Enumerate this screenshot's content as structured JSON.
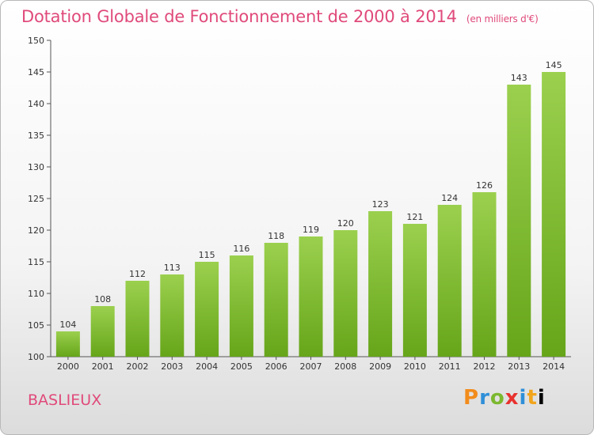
{
  "header": {
    "title": "Dotation Globale de Fonctionnement de 2000 à 2014",
    "subtitle": "(en milliers d'€)"
  },
  "footer": {
    "commune": "BASLIEUX",
    "logo": "Proxiti"
  },
  "colors": {
    "bar_top": "#9bd04e",
    "bar_bottom": "#66a51a",
    "title": "#e04a7a"
  },
  "chart_data": {
    "type": "bar",
    "title": "Dotation Globale de Fonctionnement de 2000 à 2014",
    "subtitle": "(en milliers d'€)",
    "xlabel": "",
    "ylabel": "",
    "categories": [
      "2000",
      "2001",
      "2002",
      "2003",
      "2004",
      "2005",
      "2006",
      "2007",
      "2008",
      "2009",
      "2010",
      "2011",
      "2012",
      "2013",
      "2014"
    ],
    "values": [
      104,
      108,
      112,
      113,
      115,
      116,
      118,
      119,
      120,
      123,
      121,
      124,
      126,
      143,
      145
    ],
    "ylim": [
      100,
      150
    ],
    "yticks": [
      100,
      105,
      110,
      115,
      120,
      125,
      130,
      135,
      140,
      145,
      150
    ],
    "grid": false,
    "legend": "none"
  }
}
